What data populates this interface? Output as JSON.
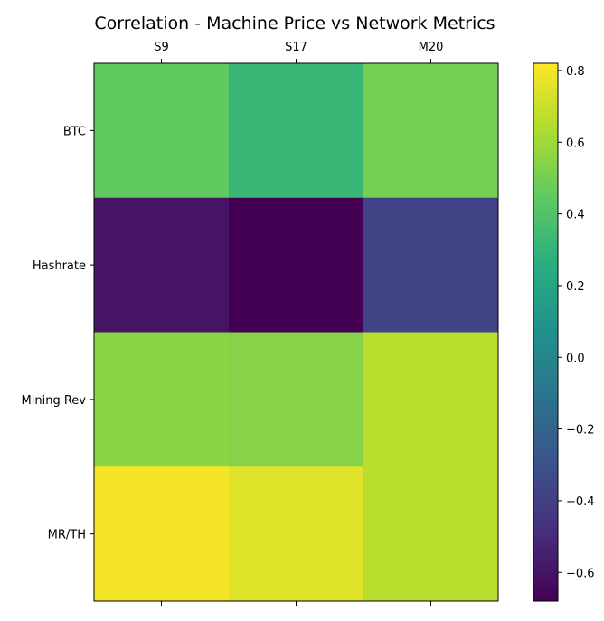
{
  "chart_data": {
    "type": "heatmap",
    "title": "Correlation - Machine Price vs Network Metrics",
    "xlabel": "",
    "ylabel": "",
    "columns": [
      "S9",
      "S17",
      "M20"
    ],
    "rows": [
      "BTC",
      "Hashrate",
      "Mining Rev",
      "MR/TH"
    ],
    "values": [
      [
        0.45,
        0.32,
        0.5
      ],
      [
        -0.6,
        -0.68,
        -0.38
      ],
      [
        0.55,
        0.54,
        0.66
      ],
      [
        0.8,
        0.75,
        0.66
      ]
    ],
    "colormap": "viridis",
    "colorbar": {
      "min": -0.68,
      "max": 0.82,
      "ticks": [
        0.8,
        0.6,
        0.4,
        0.2,
        0.0,
        -0.2,
        -0.4,
        -0.6
      ],
      "tick_labels": [
        "0.8",
        "0.6",
        "0.4",
        "0.2",
        "0.0",
        "−0.2",
        "−0.4",
        "−0.6"
      ]
    }
  }
}
